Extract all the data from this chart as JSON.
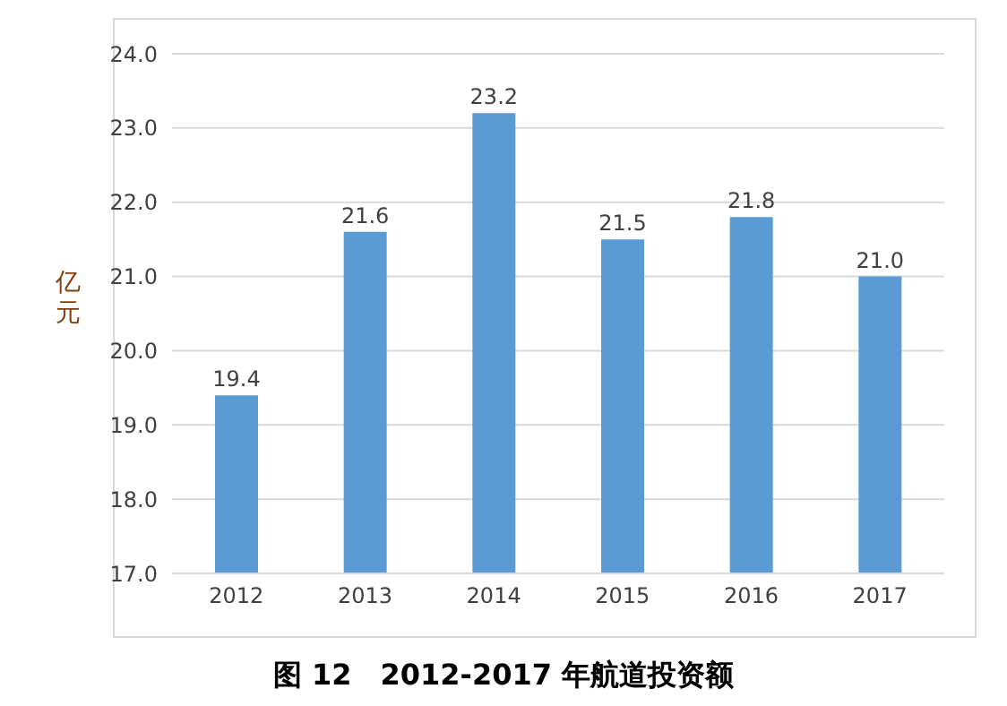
{
  "chart_data": {
    "type": "bar",
    "title": "图 12　2012-2017 年航道投资额",
    "ylabel": "亿元",
    "categories": [
      "2012",
      "2013",
      "2014",
      "2015",
      "2016",
      "2017"
    ],
    "values": [
      19.4,
      21.6,
      23.2,
      21.5,
      21.8,
      21.0
    ],
    "value_labels": [
      "19.4",
      "21.6",
      "23.2",
      "21.5",
      "21.8",
      "21.0"
    ],
    "color": "#5b9bd5",
    "ylim": [
      17,
      24
    ],
    "yticks": [
      {
        "value": 17,
        "label": "17.0"
      },
      {
        "value": 18,
        "label": "18.0"
      },
      {
        "value": 19,
        "label": "19.0"
      },
      {
        "value": 20,
        "label": "20.0"
      },
      {
        "value": 21,
        "label": "21.0"
      },
      {
        "value": 22,
        "label": "22.0"
      },
      {
        "value": 23,
        "label": "23.0"
      },
      {
        "value": 24,
        "label": "24.0"
      }
    ],
    "grid": "y",
    "legend": false
  }
}
